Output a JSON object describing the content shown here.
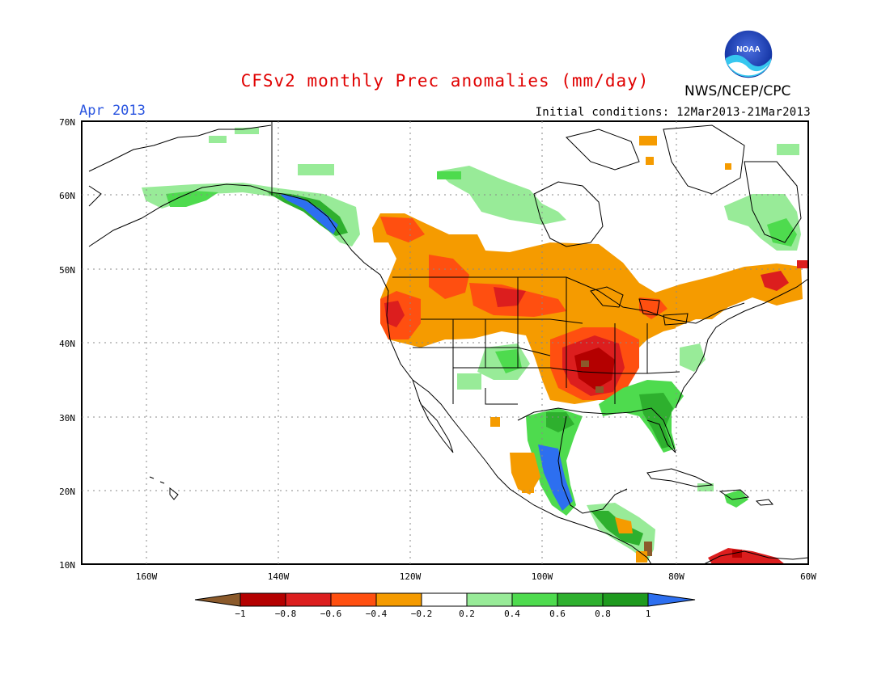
{
  "title": "CFSv2 monthly Prec anomalies (mm/day)",
  "month_label": "Apr 2013",
  "initial_conditions": "Initial conditions: 12Mar2013-21Mar2013",
  "agency": "NWS/NCEP/CPC",
  "logo_text": "NOAA",
  "lat_labels": [
    "70N",
    "60N",
    "50N",
    "40N",
    "30N",
    "20N",
    "10N"
  ],
  "lon_labels": [
    "160W",
    "140W",
    "120W",
    "100W",
    "80W",
    "60W"
  ],
  "colorbar": {
    "labels": [
      "-1",
      "-0.8",
      "-0.6",
      "-0.4",
      "-0.2",
      "0.2",
      "0.4",
      "0.6",
      "0.8",
      "1"
    ],
    "colors": [
      "#8b5a2b",
      "#b40000",
      "#dc1e1e",
      "#ff4f10",
      "#f59b00",
      "#ffffff",
      "#98eb98",
      "#4edb4e",
      "#2eb02e",
      "#1e9a1e",
      "#2d6ff0"
    ]
  },
  "colors": {
    "title": "#e00000",
    "month": "#2a55e0",
    "land_outline": "#000000",
    "grid": "#888888"
  }
}
